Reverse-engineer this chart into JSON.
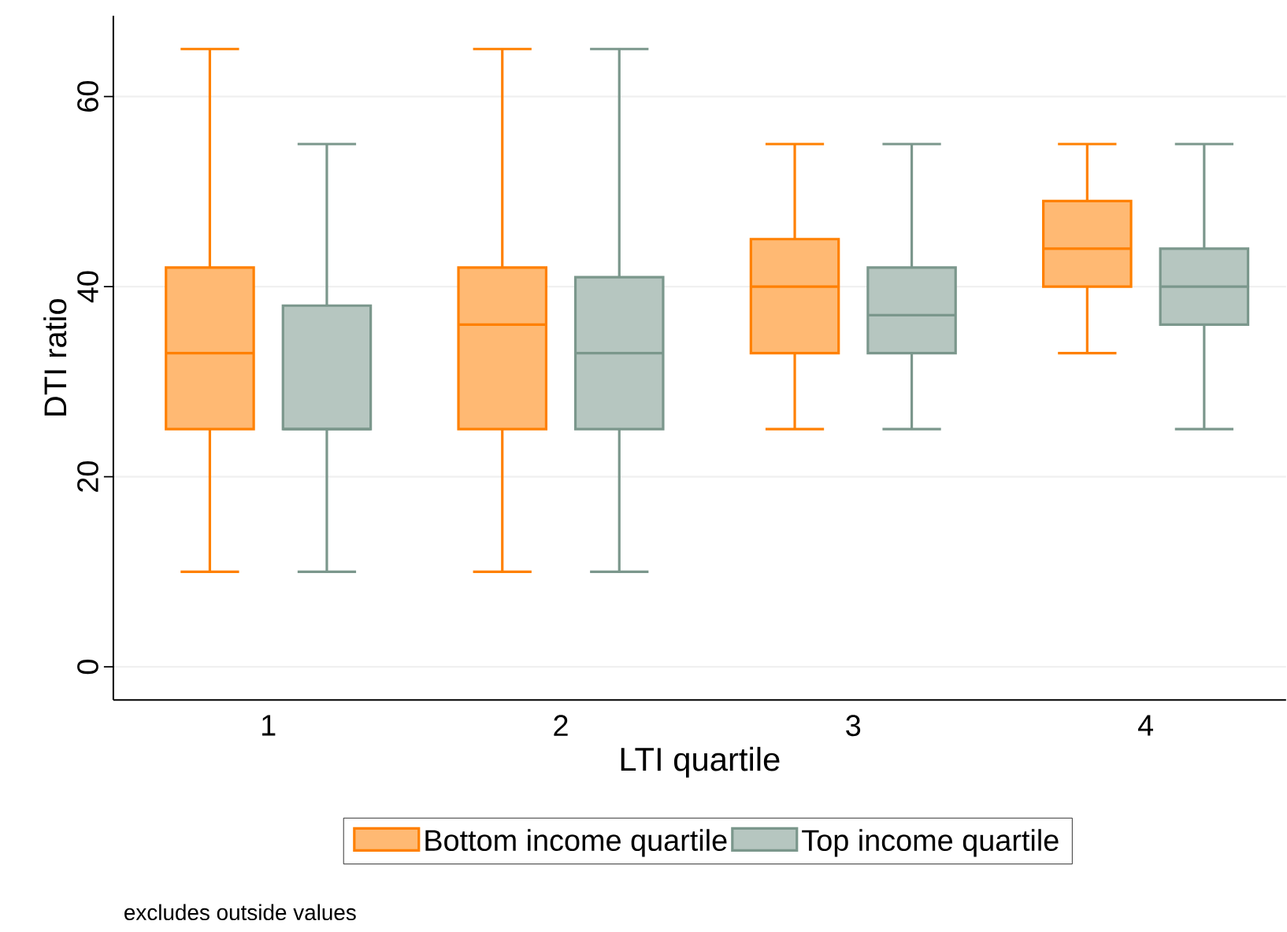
{
  "chart_data": {
    "type": "box",
    "xlabel": "LTI quartile",
    "ylabel": "DTI ratio",
    "categories": [
      "1",
      "2",
      "3",
      "4"
    ],
    "ylim": [
      -3.5,
      68.5
    ],
    "yticks": [
      0,
      20,
      40,
      60
    ],
    "grid": "y",
    "legend": "bottom",
    "annotations": [
      "excludes outside values"
    ],
    "series": [
      {
        "name": "Bottom income quartile",
        "color": "#ff8000",
        "boxes": [
          {
            "low": 10,
            "q1": 25,
            "median": 33,
            "q3": 42,
            "high": 65
          },
          {
            "low": 10,
            "q1": 25,
            "median": 36,
            "q3": 42,
            "high": 65
          },
          {
            "low": 25,
            "q1": 33,
            "median": 40,
            "q3": 45,
            "high": 55
          },
          {
            "low": 33,
            "q1": 40,
            "median": 44,
            "q3": 49,
            "high": 55
          }
        ]
      },
      {
        "name": "Top income quartile",
        "color": "#7b978c",
        "boxes": [
          {
            "low": 10,
            "q1": 25,
            "median": 25,
            "q3": 38,
            "high": 55
          },
          {
            "low": 10,
            "q1": 25,
            "median": 33,
            "q3": 41,
            "high": 65
          },
          {
            "low": 25,
            "q1": 33,
            "median": 37,
            "q3": 42,
            "high": 55
          },
          {
            "low": 25,
            "q1": 36,
            "median": 40,
            "q3": 44,
            "high": 55
          }
        ]
      }
    ]
  }
}
